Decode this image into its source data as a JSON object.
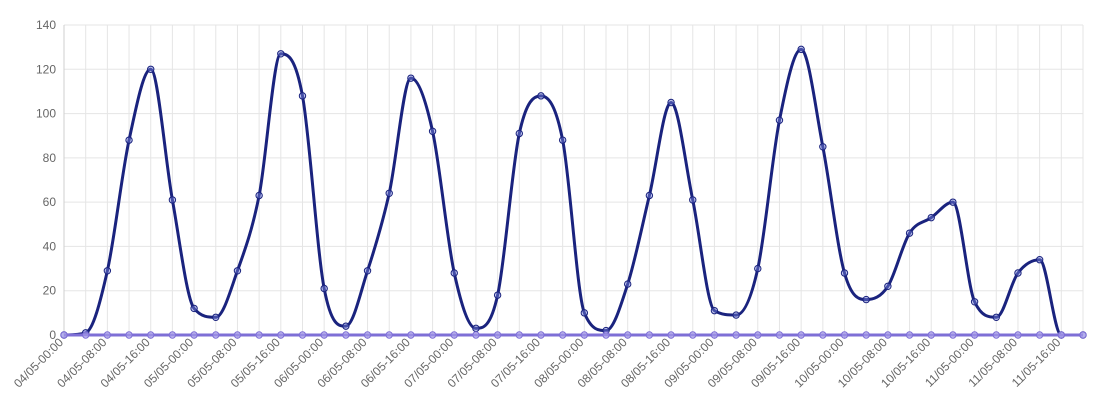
{
  "chart_data": {
    "type": "line",
    "title": "",
    "xlabel": "",
    "ylabel": "",
    "ylim": [
      0,
      140
    ],
    "y_ticks": [
      "0",
      "20",
      "40",
      "60",
      "80",
      "100",
      "120",
      "140"
    ],
    "x_tick_labels": [
      "04/05-00:00",
      "04/05-08:00",
      "04/05-16:00",
      "05/05-00:00",
      "05/05-08:00",
      "05/05-16:00",
      "06/05-00:00",
      "06/05-08:00",
      "06/05-16:00",
      "07/05-00:00",
      "07/05-08:00",
      "07/05-16:00",
      "08/05-00:00",
      "08/05-08:00",
      "08/05-16:00",
      "09/05-00:00",
      "09/05-08:00",
      "09/05-16:00",
      "10/05-00:00",
      "10/05-08:00",
      "10/05-16:00",
      "11/05-00:00",
      "11/05-08:00",
      "11/05-16:00"
    ],
    "grid": true,
    "legend": "none",
    "series": [
      {
        "color": "#1a237e",
        "values": [
          0,
          1,
          29,
          88,
          120,
          61,
          12,
          8,
          29,
          63,
          127,
          108,
          21,
          4,
          29,
          64,
          116,
          92,
          28,
          3,
          18,
          91,
          108,
          88,
          10,
          2,
          23,
          63,
          105,
          61,
          11,
          9,
          30,
          97,
          129,
          85,
          28,
          16,
          22,
          46,
          53,
          60,
          15,
          8,
          28,
          34,
          0,
          0
        ]
      },
      {
        "color": "#7e6fd6",
        "values": [
          0,
          0,
          0,
          0,
          0,
          0,
          0,
          0,
          0,
          0,
          0,
          0,
          0,
          0,
          0,
          0,
          0,
          0,
          0,
          0,
          0,
          0,
          0,
          0,
          0,
          0,
          0,
          0,
          0,
          0,
          0,
          0,
          0,
          0,
          0,
          0,
          0,
          0,
          0,
          0,
          0,
          0,
          0,
          0,
          0,
          0,
          0,
          0
        ]
      }
    ]
  }
}
